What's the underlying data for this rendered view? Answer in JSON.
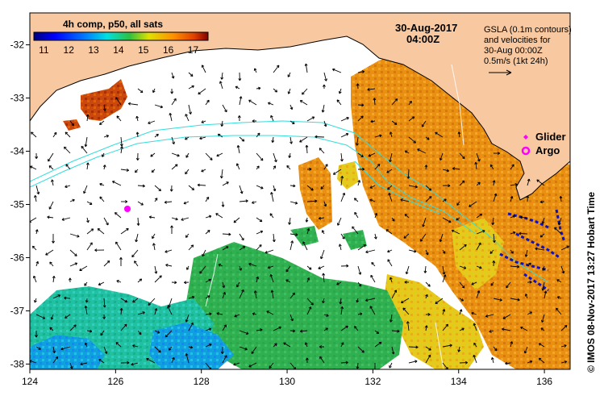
{
  "map": {
    "lon_ticks": [
      "124",
      "126",
      "128",
      "130",
      "132",
      "134",
      "136"
    ],
    "lat_ticks": [
      "-32",
      "-33",
      "-34",
      "-35",
      "-36",
      "-37",
      "-38"
    ],
    "lon_range": [
      124,
      136.6
    ],
    "lat_range": [
      -38.1,
      -31.4
    ]
  },
  "colorbar": {
    "title": "4h comp, p50, all sats",
    "ticks": [
      "11",
      "12",
      "13",
      "14",
      "15",
      "16",
      "17"
    ],
    "range": [
      10.6,
      17.6
    ]
  },
  "date": {
    "line1": "30-Aug-2017",
    "line2": "04:00Z"
  },
  "gsla_note": {
    "line1": "GSLA (0.1m contours)",
    "line2": "and velocities for",
    "line3": "30-Aug 00:00Z",
    "line4": "0.5m/s (1kt 24h)"
  },
  "legend": {
    "glider": "Glider",
    "argo": "Argo"
  },
  "credit": "©  IMOS 08-Nov-2017 13:27 Hobart Time",
  "colors": {
    "land": "#f8c9a0",
    "glider": "#ff00ff",
    "argo": "#ff00ff",
    "contour": "#33dddd",
    "vector": "#000000",
    "glider_track": "#1010c0"
  }
}
